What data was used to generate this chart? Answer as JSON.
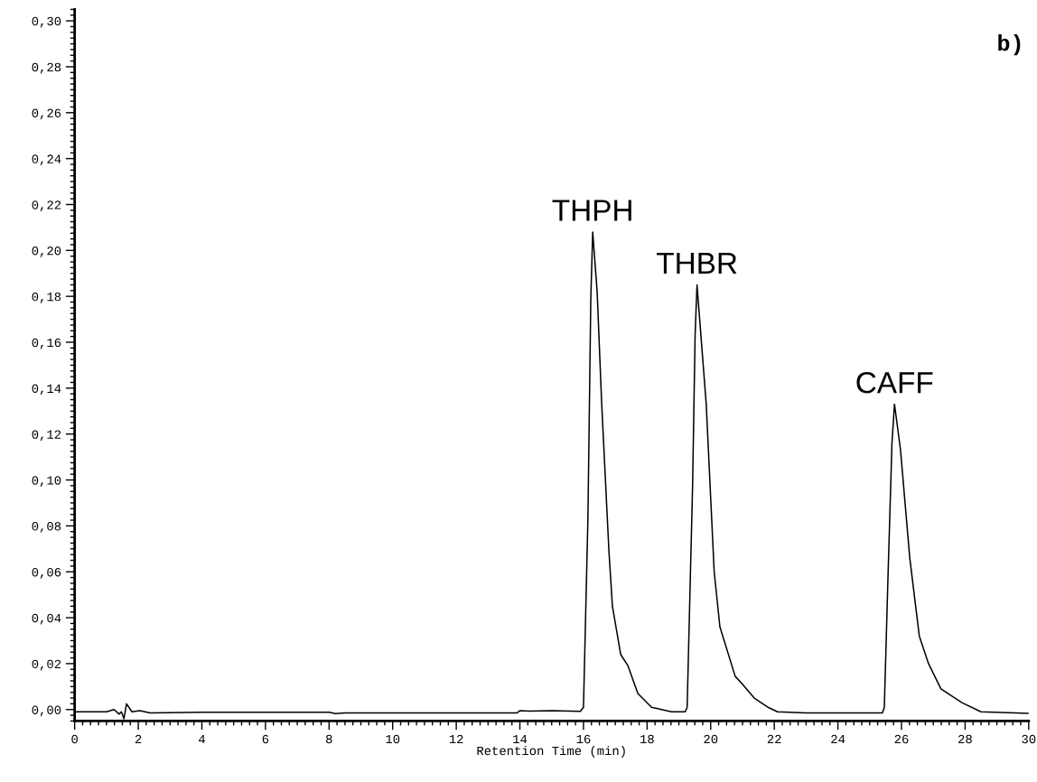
{
  "chart_data": {
    "type": "line",
    "xlabel": "Retention Time (min)",
    "series": [
      {
        "color": "#000000",
        "x": [
          0,
          1.0,
          1.24,
          1.4,
          1.47,
          1.55,
          1.63,
          1.8,
          2.05,
          2.37,
          4.0,
          8.0,
          8.2,
          8.5,
          12.0,
          13.9,
          14.0,
          14.3,
          15.0,
          15.9,
          16.0,
          16.14,
          16.23,
          16.29,
          16.43,
          16.57,
          16.8,
          16.91,
          17.17,
          17.4,
          17.71,
          18.14,
          18.77,
          19.2,
          19.26,
          19.43,
          19.51,
          19.57,
          19.86,
          20.11,
          20.29,
          20.77,
          21.0,
          21.37,
          21.8,
          22.1,
          23.0,
          25.4,
          25.46,
          25.58,
          25.7,
          25.78,
          25.97,
          26.26,
          26.56,
          26.85,
          27.24,
          27.9,
          28.5,
          30.0
        ],
        "values": [
          -0.001,
          -0.001,
          0.0,
          -0.002,
          -0.001,
          -0.004,
          0.0025,
          -0.001,
          -0.0005,
          -0.0015,
          -0.0012,
          -0.0012,
          -0.0018,
          -0.0015,
          -0.0015,
          -0.0015,
          -0.0005,
          -0.0007,
          -0.0005,
          -0.0008,
          0.001,
          0.0836,
          0.179,
          0.208,
          0.182,
          0.134,
          0.069,
          0.045,
          0.024,
          0.019,
          0.007,
          0.001,
          -0.001,
          -0.001,
          0.001,
          0.097,
          0.163,
          0.185,
          0.133,
          0.06,
          0.036,
          0.0145,
          0.011,
          0.005,
          0.001,
          -0.001,
          -0.0015,
          -0.0015,
          0.001,
          0.06,
          0.116,
          0.133,
          0.113,
          0.066,
          0.032,
          0.02,
          0.009,
          0.003,
          -0.001,
          -0.0017
        ]
      }
    ],
    "xlim": [
      0,
      30
    ],
    "ylim": [
      -0.005,
      0.305
    ],
    "xticks": [
      0,
      2,
      4,
      6,
      8,
      10,
      12,
      14,
      16,
      18,
      20,
      22,
      24,
      26,
      28,
      30
    ],
    "yticks": [
      {
        "value": 0,
        "label": "0,00"
      },
      {
        "value": 0.02,
        "label": "0,02"
      },
      {
        "value": 0.04,
        "label": "0,04"
      },
      {
        "value": 0.06,
        "label": "0,06"
      },
      {
        "value": 0.08,
        "label": "0,08"
      },
      {
        "value": 0.1,
        "label": "0,10"
      },
      {
        "value": 0.12,
        "label": "0,12"
      },
      {
        "value": 0.14,
        "label": "0,14"
      },
      {
        "value": 0.16,
        "label": "0,16"
      },
      {
        "value": 0.18,
        "label": "0,18"
      },
      {
        "value": 0.2,
        "label": "0,20"
      },
      {
        "value": 0.22,
        "label": "0,22"
      },
      {
        "value": 0.24,
        "label": "0,24"
      },
      {
        "value": 0.26,
        "label": "0,26"
      },
      {
        "value": 0.28,
        "label": "0,28"
      },
      {
        "value": 0.3,
        "label": "0,30"
      }
    ],
    "annotations": [
      {
        "text": "THPH",
        "x": 16.29,
        "y": 0.208
      },
      {
        "text": "THBR",
        "x": 19.57,
        "y": 0.185
      },
      {
        "text": "CAFF",
        "x": 25.78,
        "y": 0.133
      },
      "b)"
    ],
    "grid": false,
    "legend": false,
    "line_style": "solid",
    "marker": "none"
  }
}
